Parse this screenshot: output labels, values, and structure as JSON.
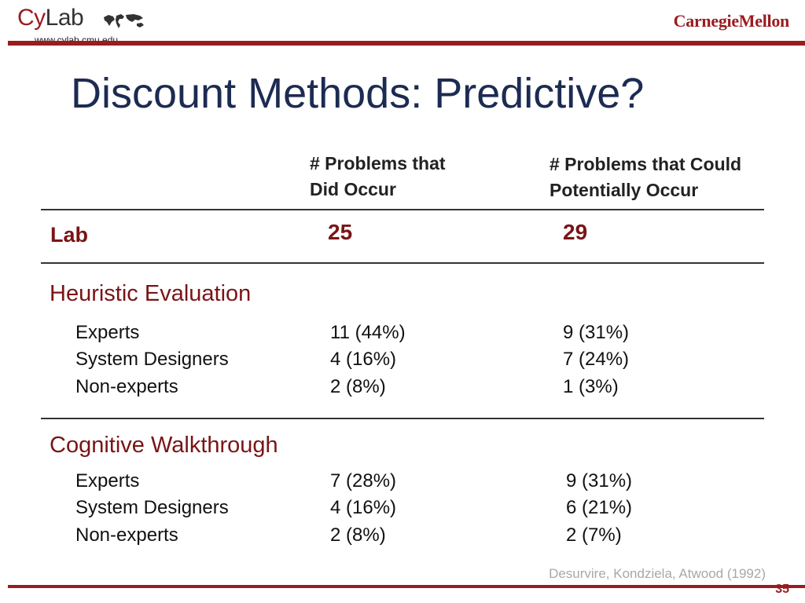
{
  "logo": {
    "cy": "Cy",
    "lab": "Lab",
    "url": "www.cylab.cmu.edu"
  },
  "brand": "CarnegieMellon",
  "title": "Discount Methods: Predictive?",
  "columns": {
    "col1": [
      "# Problems that",
      "Did Occur"
    ],
    "col2": [
      "# Problems that Could",
      "Potentially Occur"
    ]
  },
  "lab_row": {
    "label": "Lab",
    "did_occur": "25",
    "could_occur": "29"
  },
  "sections": [
    {
      "heading": "Heuristic Evaluation",
      "rows": [
        {
          "label": "Experts",
          "did_occur": "11 (44%)",
          "could_occur": "9 (31%)"
        },
        {
          "label": "System Designers",
          "did_occur": "4 (16%)",
          "could_occur": "7 (24%)"
        },
        {
          "label": "Non-experts",
          "did_occur": "2 (8%)",
          "could_occur": "1 (3%)"
        }
      ]
    },
    {
      "heading": "Cognitive Walkthrough",
      "rows": [
        {
          "label": "Experts",
          "did_occur": "7 (28%)",
          "could_occur": "9 (31%)"
        },
        {
          "label": "System Designers",
          "did_occur": "4 (16%)",
          "could_occur": "6 (21%)"
        },
        {
          "label": "Non-experts",
          "did_occur": "2 (8%)",
          "could_occur": "2 (7%)"
        }
      ]
    }
  ],
  "citation": "Desurvire, Kondziela, Atwood (1992)",
  "page_number": "35",
  "colors": {
    "accent": "#9b1b1e",
    "title": "#1c2b52",
    "section": "#7a1416"
  }
}
